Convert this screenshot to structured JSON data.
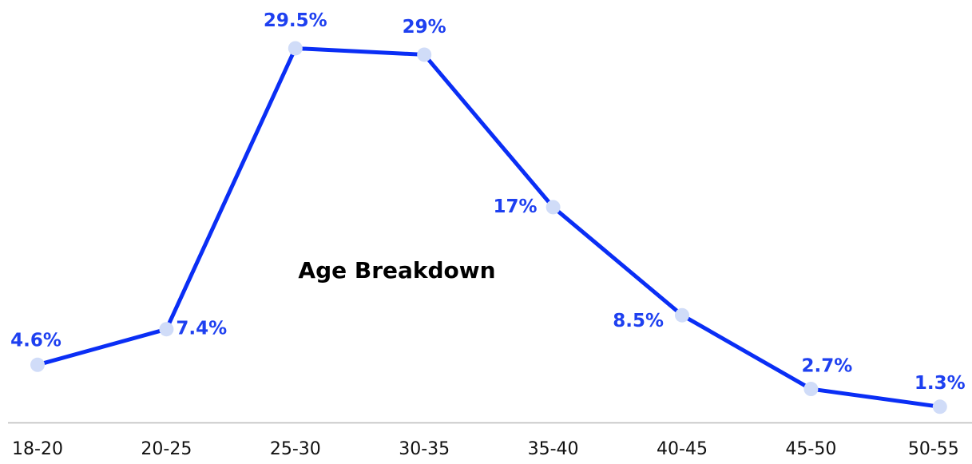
{
  "chart_data": {
    "type": "line",
    "title": "Age Breakdown",
    "categories": [
      "18-20",
      "20-25",
      "25-30",
      "30-35",
      "35-40",
      "40-45",
      "45-50",
      "50-55"
    ],
    "values": [
      4.6,
      7.4,
      29.5,
      29,
      17,
      8.5,
      2.7,
      1.3
    ],
    "value_labels": [
      "4.6%",
      "7.4%",
      "29.5%",
      "29%",
      "17%",
      "8.5%",
      "2.7%",
      "1.3%"
    ],
    "color": "#0a2ef5",
    "marker_color": "#d0dcf8",
    "ylim": [
      0,
      33.3
    ]
  }
}
